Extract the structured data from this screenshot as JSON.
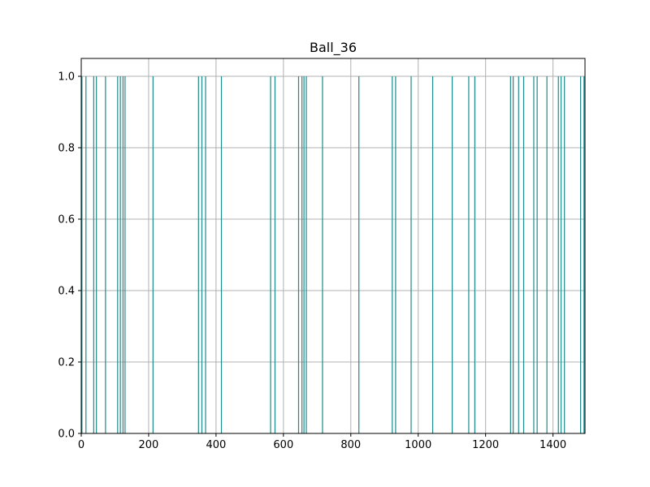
{
  "chart_data": {
    "type": "bar",
    "title": "Ball_36",
    "xlabel": "",
    "ylabel": "",
    "xlim": [
      0,
      1495
    ],
    "ylim": [
      0,
      1.05
    ],
    "grid": true,
    "x_ticks": [
      0,
      200,
      400,
      600,
      800,
      1000,
      1200,
      1400
    ],
    "x_tick_labels": [
      "0",
      "200",
      "400",
      "600",
      "800",
      "1000",
      "1200",
      "1400"
    ],
    "y_ticks": [
      0.0,
      0.2,
      0.4,
      0.6,
      0.8,
      1.0
    ],
    "y_tick_labels": [
      "0.0",
      "0.2",
      "0.4",
      "0.6",
      "0.8",
      "1.0"
    ],
    "bar_color": "#1f8a8a",
    "grid_color": "#b0b0b0",
    "x": [
      2,
      14,
      37,
      45,
      72,
      108,
      116,
      124,
      130,
      213,
      348,
      358,
      369,
      416,
      562,
      575,
      645,
      655,
      661,
      668,
      716,
      824,
      923,
      933,
      979,
      1043,
      1101,
      1150,
      1168,
      1274,
      1282,
      1298,
      1313,
      1343,
      1353,
      1382,
      1416,
      1424,
      1434,
      1482,
      1492
    ],
    "values": [
      1,
      1,
      1,
      1,
      1,
      1,
      1,
      1,
      1,
      1,
      1,
      1,
      1,
      1,
      1,
      1,
      1,
      1,
      1,
      1,
      1,
      1,
      1,
      1,
      1,
      1,
      1,
      1,
      1,
      1,
      1,
      1,
      1,
      1,
      1,
      1,
      1,
      1,
      1,
      1,
      1
    ]
  }
}
